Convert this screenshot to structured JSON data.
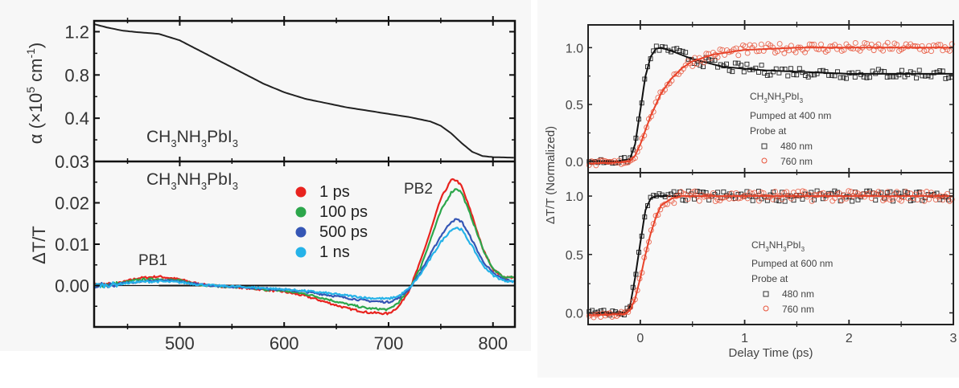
{
  "chart_data": [
    {
      "id": "left",
      "type": "line",
      "panels": [
        {
          "name": "absorption",
          "ylabel": "α (×10⁵ cm⁻¹)",
          "ylabel_parts": {
            "main": "α (×10",
            "sup1": "5",
            "mid": " cm",
            "sup2": "-1",
            "end": ")"
          },
          "ylim": [
            0,
            1.3
          ],
          "yticks": [
            0.4,
            0.8,
            1.2
          ],
          "ytick_labels": [
            "0.4",
            "0.8",
            "1.2"
          ],
          "annotation": {
            "main": "CH",
            "s1": "3",
            "m2": "NH",
            "s2": "3",
            "m3": "PbI",
            "s3": "3"
          },
          "series": [
            {
              "name": "absorption",
              "color": "#222222",
              "x": [
                418,
                430,
                445,
                460,
                480,
                500,
                520,
                540,
                560,
                580,
                600,
                620,
                640,
                660,
                680,
                700,
                720,
                740,
                750,
                760,
                770,
                780,
                790,
                800,
                821
              ],
              "y": [
                1.27,
                1.24,
                1.21,
                1.195,
                1.18,
                1.12,
                1.02,
                0.92,
                0.82,
                0.72,
                0.64,
                0.58,
                0.54,
                0.5,
                0.47,
                0.44,
                0.41,
                0.37,
                0.33,
                0.26,
                0.17,
                0.09,
                0.05,
                0.04,
                0.035
              ]
            }
          ]
        },
        {
          "name": "transient",
          "ylabel": "ΔT/T",
          "ylim": [
            -0.01,
            0.03
          ],
          "yticks": [
            0.0,
            0.01,
            0.02,
            0.03
          ],
          "ytick_labels": [
            "0.00",
            "0.01",
            "0.02",
            "0.03"
          ],
          "xlim": [
            418,
            821
          ],
          "xticks": [
            500,
            600,
            700,
            800
          ],
          "xtick_labels": [
            "500",
            "600",
            "700",
            "800"
          ],
          "annotation": {
            "main": "CH",
            "s1": "3",
            "m2": "NH",
            "s2": "3",
            "m3": "PbI",
            "s3": "3"
          },
          "peak_labels": [
            "PB1",
            "PB2"
          ],
          "legend": {
            "placement": "upper-center",
            "entries": [
              {
                "label": "1 ps",
                "color": "#e8231f"
              },
              {
                "label": "100 ps",
                "color": "#2ca64b"
              },
              {
                "label": "500 ps",
                "color": "#3556b5"
              },
              {
                "label": "1 ns",
                "color": "#25b2e8"
              }
            ]
          },
          "x": [
            420,
            440,
            460,
            480,
            500,
            520,
            540,
            560,
            580,
            600,
            620,
            640,
            660,
            680,
            700,
            710,
            720,
            730,
            740,
            750,
            760,
            765,
            770,
            780,
            790,
            800,
            810,
            820
          ],
          "series": [
            {
              "name": "1 ps",
              "color": "#e8231f",
              "y": [
                0.0,
                0.0005,
                0.0018,
                0.0022,
                0.0015,
                0.0003,
                -0.0002,
                -0.0005,
                -0.001,
                -0.0015,
                -0.0025,
                -0.004,
                -0.0055,
                -0.0065,
                -0.0068,
                -0.005,
                -0.001,
                0.0055,
                0.013,
                0.021,
                0.0255,
                0.0255,
                0.024,
                0.017,
                0.009,
                0.004,
                0.002,
                0.002
              ]
            },
            {
              "name": "100 ps",
              "color": "#2ca64b",
              "y": [
                0.0,
                0.0004,
                0.0014,
                0.0016,
                0.0012,
                0.0002,
                -0.0002,
                -0.0005,
                -0.0009,
                -0.0013,
                -0.002,
                -0.0032,
                -0.0045,
                -0.0055,
                -0.0058,
                -0.004,
                -0.0008,
                0.004,
                0.011,
                0.018,
                0.0225,
                0.0235,
                0.0225,
                0.016,
                0.009,
                0.004,
                0.002,
                0.002
              ]
            },
            {
              "name": "500 ps",
              "color": "#3556b5",
              "y": [
                0.0,
                0.0003,
                0.001,
                0.0012,
                0.001,
                0.0002,
                -0.0001,
                -0.0004,
                -0.0007,
                -0.001,
                -0.0015,
                -0.0022,
                -0.003,
                -0.0037,
                -0.004,
                -0.003,
                -0.0008,
                0.003,
                0.0075,
                0.012,
                0.0155,
                0.016,
                0.0155,
                0.011,
                0.006,
                0.003,
                0.0015,
                0.001
              ]
            },
            {
              "name": "1 ns",
              "color": "#25b2e8",
              "y": [
                0.0,
                0.0003,
                0.0009,
                0.001,
                0.0008,
                0.0002,
                -0.0001,
                -0.0003,
                -0.0006,
                -0.0009,
                -0.0013,
                -0.0018,
                -0.0024,
                -0.003,
                -0.0032,
                -0.0025,
                -0.0006,
                0.0025,
                0.0065,
                0.0105,
                0.0135,
                0.014,
                0.0135,
                0.0095,
                0.005,
                0.0025,
                0.0012,
                0.001
              ]
            },
            {
              "name": "baseline",
              "color": "#111111",
              "y": [
                0,
                0,
                0,
                0,
                0,
                0,
                0,
                0,
                0,
                0,
                0,
                0,
                0,
                0,
                0,
                0,
                0,
                0,
                0,
                0,
                0,
                0,
                0,
                0,
                0,
                0,
                0,
                0
              ]
            }
          ]
        }
      ]
    },
    {
      "id": "right",
      "type": "scatter",
      "ylabel": "ΔT/T (Normalized)",
      "xlabel": "Delay Time (ps)",
      "xlim": [
        -0.5,
        3
      ],
      "xticks": [
        0,
        1,
        2,
        3
      ],
      "xtick_labels": [
        "0",
        "1",
        "2",
        "3"
      ],
      "panels": [
        {
          "name": "pumped-400",
          "ylim": [
            -0.1,
            1.2
          ],
          "yticks": [
            0.0,
            0.5,
            1.0
          ],
          "ytick_labels": [
            "0.0",
            "0.5",
            "1.0"
          ],
          "legend": {
            "title_parts": {
              "main": "CH",
              "s1": "3",
              "m2": "NH",
              "s2": "3",
              "m3": "PbI",
              "s3": "3"
            },
            "line2": "Pumped at 400 nm",
            "line3": "Probe at",
            "entries": [
              {
                "label": "480 nm",
                "marker": "square",
                "color": "#222222"
              },
              {
                "label": "760 nm",
                "marker": "circle",
                "color": "#e8533a"
              }
            ]
          },
          "series": [
            {
              "name": "480 nm",
              "marker": "square",
              "color": "#222222",
              "fit": {
                "x": [
                  -0.5,
                  -0.2,
                  -0.1,
                  -0.05,
                  0.0,
                  0.05,
                  0.1,
                  0.15,
                  0.2,
                  0.3,
                  0.5,
                  0.8,
                  1.2,
                  2.0,
                  3.0
                ],
                "y": [
                  0.0,
                  0.0,
                  0.02,
                  0.15,
                  0.45,
                  0.75,
                  0.92,
                  0.99,
                  1.0,
                  0.97,
                  0.9,
                  0.83,
                  0.8,
                  0.77,
                  0.77
                ]
              }
            },
            {
              "name": "760 nm",
              "marker": "circle",
              "color": "#e8533a",
              "fit": {
                "x": [
                  -0.5,
                  -0.2,
                  -0.1,
                  -0.05,
                  0.0,
                  0.1,
                  0.2,
                  0.3,
                  0.4,
                  0.5,
                  0.7,
                  1.0,
                  1.5,
                  2.0,
                  3.0
                ],
                "y": [
                  -0.02,
                  -0.01,
                  0.0,
                  0.05,
                  0.15,
                  0.4,
                  0.6,
                  0.73,
                  0.82,
                  0.88,
                  0.94,
                  0.98,
                  1.0,
                  1.0,
                  1.0
                ]
              }
            }
          ]
        },
        {
          "name": "pumped-600",
          "ylim": [
            -0.1,
            1.2
          ],
          "yticks": [
            0.0,
            0.5,
            1.0
          ],
          "ytick_labels": [
            "0.0",
            "0.5",
            "1.0"
          ],
          "legend": {
            "title_parts": {
              "main": "CH",
              "s1": "3",
              "m2": "NH",
              "s2": "3",
              "m3": "PbI",
              "s3": "3"
            },
            "line2": "Pumped at 600 nm",
            "line3": "Probe at",
            "entries": [
              {
                "label": "480 nm",
                "marker": "square",
                "color": "#222222"
              },
              {
                "label": "760 nm",
                "marker": "circle",
                "color": "#e8533a"
              }
            ]
          },
          "series": [
            {
              "name": "480 nm",
              "marker": "square",
              "color": "#222222",
              "fit": {
                "x": [
                  -0.5,
                  -0.15,
                  -0.1,
                  -0.05,
                  0.0,
                  0.05,
                  0.1,
                  0.15,
                  0.3,
                  3.0
                ],
                "y": [
                  0.0,
                  0.0,
                  0.05,
                  0.3,
                  0.6,
                  0.88,
                  0.98,
                  1.0,
                  1.0,
                  1.0
                ]
              }
            },
            {
              "name": "760 nm",
              "marker": "circle",
              "color": "#e8533a",
              "fit": {
                "x": [
                  -0.5,
                  -0.15,
                  -0.1,
                  -0.05,
                  0.0,
                  0.05,
                  0.1,
                  0.15,
                  0.2,
                  0.3,
                  0.4,
                  3.0
                ],
                "y": [
                  -0.02,
                  -0.01,
                  0.02,
                  0.12,
                  0.3,
                  0.5,
                  0.68,
                  0.82,
                  0.92,
                  0.98,
                  1.0,
                  1.0
                ]
              }
            }
          ]
        }
      ]
    }
  ]
}
